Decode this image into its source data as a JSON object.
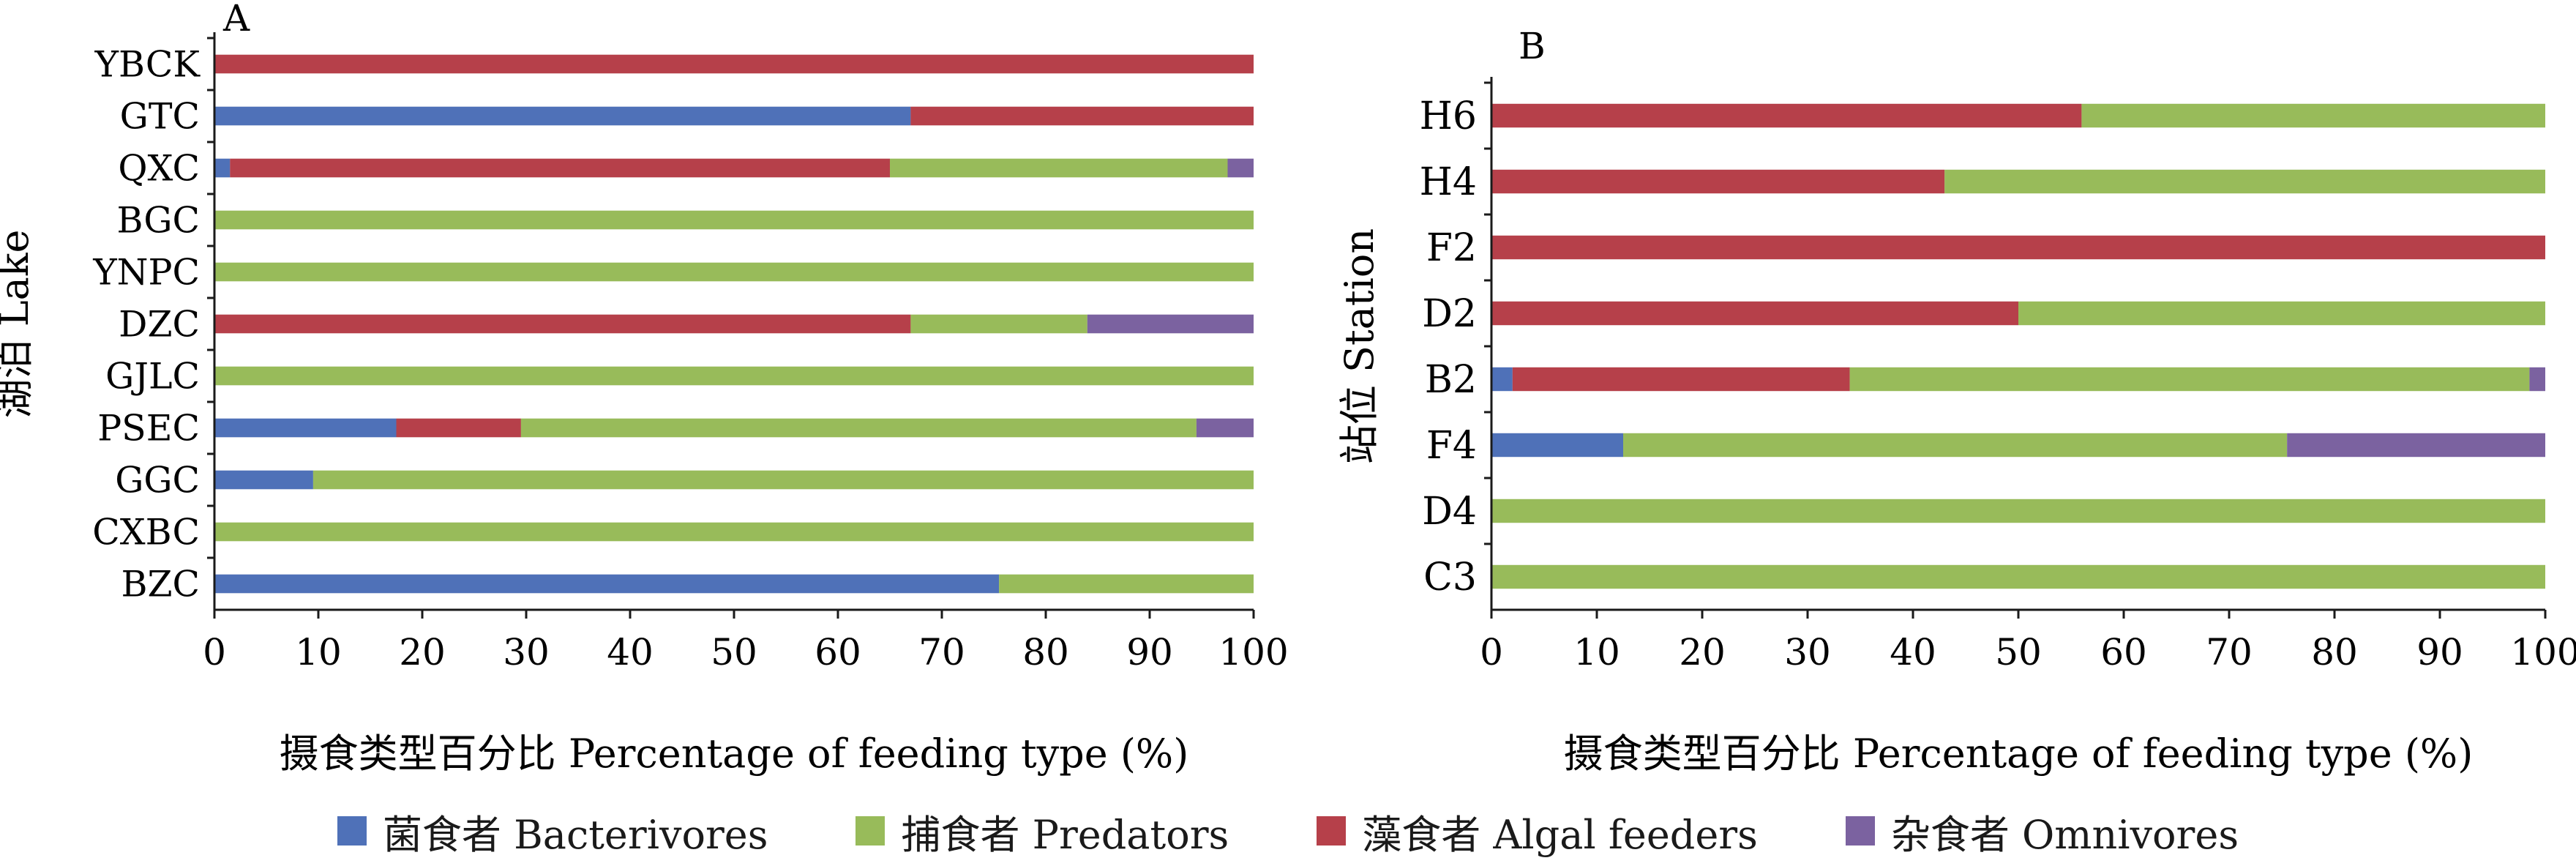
{
  "colors": {
    "bacterivores": "#4f71b8",
    "predators": "#98bb5a",
    "algal": "#b6404a",
    "omnivores": "#7b62a0",
    "axis": "#1a1a1a",
    "track": "#ededed"
  },
  "legend": [
    {
      "key": "bacterivores",
      "label": "菌食者 Bacterivores"
    },
    {
      "key": "predators",
      "label": "捕食者 Predators"
    },
    {
      "key": "algal",
      "label": "藻食者 Algal feeders"
    },
    {
      "key": "omnivores",
      "label": "杂食者 Omnivores"
    }
  ],
  "chart_data": [
    {
      "type": "bar",
      "orientation": "horizontal",
      "stacked": true,
      "panel_label": "A",
      "ylabel": "湖泊 Lake",
      "xlabel": "摄食类型百分比 Percentage of feeding type (%)",
      "xlim": [
        0,
        100
      ],
      "xticks": [
        "0",
        "10",
        "20",
        "30",
        "40",
        "50",
        "60",
        "70",
        "80",
        "90",
        "100"
      ],
      "categories": [
        "YBCK",
        "GTC",
        "QXC",
        "BGC",
        "YNPC",
        "DZC",
        "GJLC",
        "PSEC",
        "GGC",
        "CXBC",
        "BZC"
      ],
      "series": [
        {
          "key": "bacterivores",
          "values": [
            0,
            67,
            1.5,
            0,
            0,
            0,
            0,
            17.5,
            9.5,
            0,
            75.5
          ]
        },
        {
          "key": "algal",
          "values": [
            100,
            33,
            63.5,
            0,
            0,
            67,
            0,
            12,
            0,
            0,
            0
          ]
        },
        {
          "key": "predators",
          "values": [
            0,
            0,
            32.5,
            100,
            100,
            17,
            100,
            65,
            90.5,
            100,
            24.5
          ]
        },
        {
          "key": "omnivores",
          "values": [
            0,
            0,
            2.5,
            0,
            0,
            16,
            0,
            5.5,
            0,
            0,
            0
          ]
        }
      ]
    },
    {
      "type": "bar",
      "orientation": "horizontal",
      "stacked": true,
      "panel_label": "B",
      "ylabel": "站位 Station",
      "xlabel": "摄食类型百分比 Percentage of feeding type  (%)",
      "xlim": [
        0,
        100
      ],
      "xticks": [
        "0",
        "10",
        "20",
        "30",
        "40",
        "50",
        "60",
        "70",
        "80",
        "90",
        "100"
      ],
      "categories": [
        "H6",
        "H4",
        "F2",
        "D2",
        "B2",
        "F4",
        "D4",
        "C3"
      ],
      "series": [
        {
          "key": "bacterivores",
          "values": [
            0,
            0,
            0,
            0,
            2,
            12.5,
            0,
            0
          ]
        },
        {
          "key": "algal",
          "values": [
            56,
            43,
            100,
            50,
            32,
            0,
            0,
            0
          ]
        },
        {
          "key": "predators",
          "values": [
            44,
            57,
            0,
            50,
            64.5,
            63,
            100,
            100
          ]
        },
        {
          "key": "omnivores",
          "values": [
            0,
            0,
            0,
            0,
            1.5,
            24.5,
            0,
            0
          ]
        }
      ]
    }
  ]
}
